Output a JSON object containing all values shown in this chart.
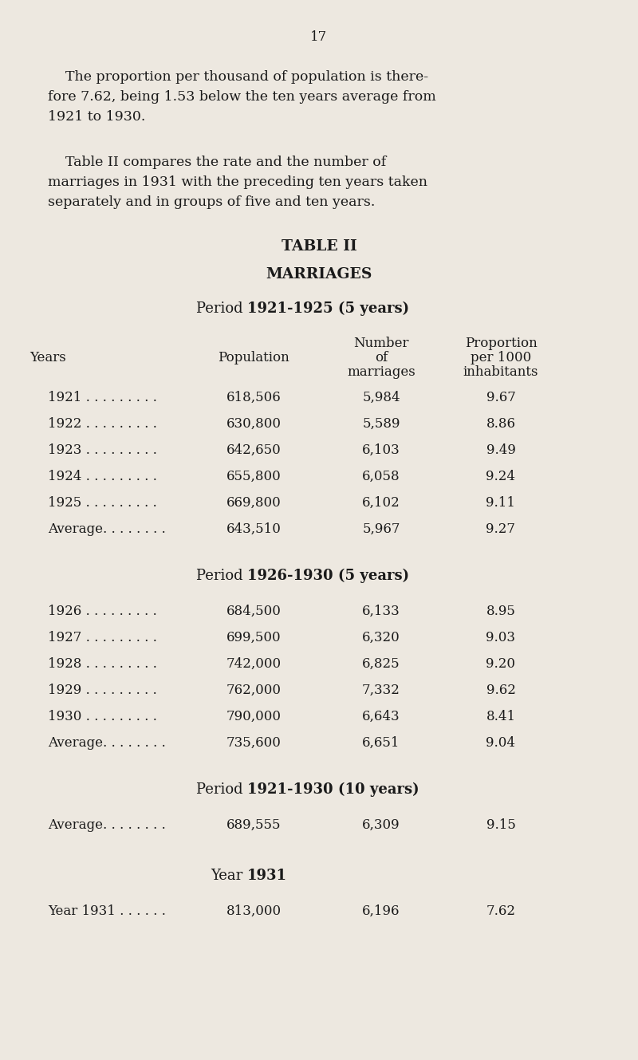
{
  "bg_color": "#ede8e0",
  "text_color": "#1a1a1a",
  "page_number": "17",
  "intro1_lines": [
    "    The proportion per thousand of population is there-",
    "fore 7.62, being 1.53 below the ten years average from",
    "1921 to 1930."
  ],
  "intro2_lines": [
    "    Table II compares the rate and the number of",
    "marriages in 1931 with the preceding ten years taken",
    "separately and in groups of five and ten years."
  ],
  "table_title": "TABLE II",
  "table_subtitle": "MARRIAGES",
  "period1_label_normal": "Period ",
  "period1_label_bold": "1921-1925 (5 years)",
  "period2_label_normal": "Period ",
  "period2_label_bold": "1926-1930 (5 years)",
  "period3_label_normal": "Period ",
  "period3_label_bold": "1921-1930 (10 years)",
  "period4_label_normal": "Year ",
  "period4_label_bold": "1931",
  "col_years_label": "Years",
  "col_pop_label": "Population",
  "col_num_label": [
    "Number",
    "of",
    "marriages"
  ],
  "col_prop_label": [
    "Proportion",
    "per 1000",
    "inhabitants"
  ],
  "period1_rows": [
    [
      "1921 . . . . . . . . .",
      "618,506",
      "5,984",
      "9.67"
    ],
    [
      "1922 . . . . . . . . .",
      "630,800",
      "5,589",
      "8.86"
    ],
    [
      "1923 . . . . . . . . .",
      "642,650",
      "6,103",
      "9.49"
    ],
    [
      "1924 . . . . . . . . .",
      "655,800",
      "6,058",
      "9.24"
    ],
    [
      "1925 . . . . . . . . .",
      "669,800",
      "6,102",
      "9.11"
    ],
    [
      "Average. . . . . . . .",
      "643,510",
      "5,967",
      "9.27"
    ]
  ],
  "period2_rows": [
    [
      "1926 . . . . . . . . .",
      "684,500",
      "6,133",
      "8.95"
    ],
    [
      "1927 . . . . . . . . .",
      "699,500",
      "6,320",
      "9.03"
    ],
    [
      "1928 . . . . . . . . .",
      "742,000",
      "6,825",
      "9.20"
    ],
    [
      "1929 . . . . . . . . .",
      "762,000",
      "7,332",
      "9.62"
    ],
    [
      "1930 . . . . . . . . .",
      "790,000",
      "6,643",
      "8.41"
    ],
    [
      "Average. . . . . . . .",
      "735,600",
      "6,651",
      "9.04"
    ]
  ],
  "period3_rows": [
    [
      "Average. . . . . . . .",
      "689,555",
      "6,309",
      "9.15"
    ]
  ],
  "period4_rows": [
    [
      "Year 1931 . . . . . .",
      "813,000",
      "6,196",
      "7.62"
    ]
  ],
  "figwidth": 8.0,
  "figheight": 13.29,
  "dpi": 100
}
